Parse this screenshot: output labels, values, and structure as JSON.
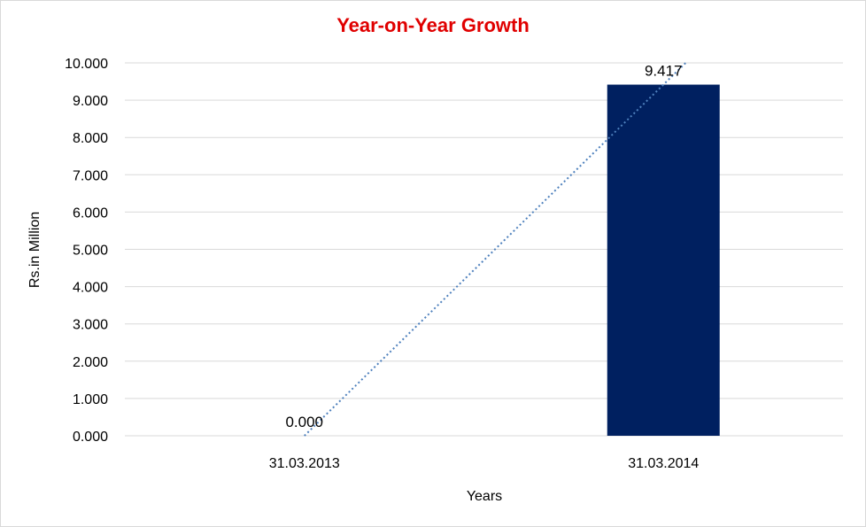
{
  "chart_data": {
    "type": "bar",
    "title": "Year-on-Year Growth",
    "xlabel": "Years",
    "ylabel": "Rs.in Million",
    "categories": [
      "31.03.2013",
      "31.03.2014"
    ],
    "values": [
      0.0,
      9.417
    ],
    "data_labels": [
      "0.000",
      "9.417"
    ],
    "ylim": [
      0,
      10
    ],
    "yticks": [
      "0.000",
      "1.000",
      "2.000",
      "3.000",
      "4.000",
      "5.000",
      "6.000",
      "7.000",
      "8.000",
      "9.000",
      "10.000"
    ],
    "grid": true,
    "legend": "none",
    "trendline": {
      "style": "dotted",
      "type": "linear"
    },
    "colors": {
      "bar": "#002060",
      "title": "#e00000",
      "trendline": "#4f81bd",
      "grid": "#d9d9d9"
    }
  }
}
